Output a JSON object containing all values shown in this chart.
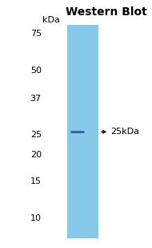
{
  "title": "Western Blot",
  "ylabel": "kDa",
  "lane_color": "#88c8e8",
  "band_color": "#2255aa",
  "band_linewidth": 1.8,
  "arrow_label": "←25kDa",
  "yticks_labels": [
    "75",
    "50",
    "37",
    "25",
    "20",
    "15",
    "10"
  ],
  "yticks_pos": [
    75,
    50,
    37,
    25,
    20,
    15,
    10
  ],
  "ymin": 8,
  "ymax": 82,
  "bg_color": "#ffffff",
  "title_fontsize": 10,
  "tick_fontsize": 8,
  "ylabel_fontsize": 8,
  "annotation_fontsize": 8
}
